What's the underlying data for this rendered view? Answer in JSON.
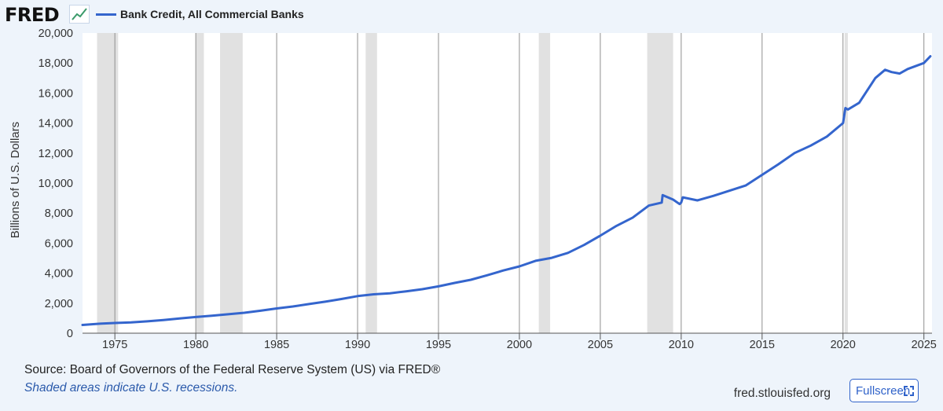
{
  "header": {
    "logo": "FRED",
    "logo_icon": "line-chart-icon",
    "legend_label": "Bank Credit, All Commercial Banks"
  },
  "footer": {
    "source": "Source: Board of Governors of the Federal Reserve System (US) via FRED®",
    "note": "Shaded areas indicate U.S. recessions.",
    "site": "fred.stlouisfed.org",
    "fullscreen_label": "Fullscreen",
    "fullscreen_icon": "expand-icon"
  },
  "colors": {
    "line": "#3465cd",
    "recession": "#e1e1e1",
    "page_bg": "#eef4fb",
    "plot_bg": "#ffffff"
  },
  "chart_data": {
    "type": "line",
    "title": "",
    "xlabel": "",
    "ylabel": "Billions of U.S. Dollars",
    "xlim": [
      1973.0,
      2025.5
    ],
    "ylim": [
      0,
      20000
    ],
    "x_ticks": [
      1975,
      1980,
      1985,
      1990,
      1995,
      2000,
      2005,
      2010,
      2015,
      2020,
      2025
    ],
    "y_ticks": [
      0,
      2000,
      4000,
      6000,
      8000,
      10000,
      12000,
      14000,
      16000,
      18000,
      20000
    ],
    "y_tick_labels": [
      "0",
      "2,000",
      "4,000",
      "6,000",
      "8,000",
      "10,000",
      "12,000",
      "14,000",
      "16,000",
      "18,000",
      "20,000"
    ],
    "grid": "vertical",
    "recessions": [
      [
        1973.9,
        1975.2
      ],
      [
        1980.0,
        1980.5
      ],
      [
        1981.5,
        1982.9
      ],
      [
        1990.5,
        1991.2
      ],
      [
        2001.2,
        2001.9
      ],
      [
        2007.9,
        2009.5
      ],
      [
        2020.1,
        2020.3
      ]
    ],
    "series": [
      {
        "x": [
          1973.0,
          1974.0,
          1975.0,
          1976.0,
          1977.0,
          1978.0,
          1979.0,
          1980.0,
          1981.0,
          1982.0,
          1983.0,
          1984.0,
          1985.0,
          1986.0,
          1987.0,
          1988.0,
          1989.0,
          1990.0,
          1991.0,
          1992.0,
          1993.0,
          1994.0,
          1995.0,
          1996.0,
          1997.0,
          1998.0,
          1999.0,
          2000.0,
          2001.0,
          2002.0,
          2003.0,
          2004.0,
          2005.0,
          2006.0,
          2007.0,
          2008.0,
          2008.8,
          2008.85,
          2009.5,
          2009.9,
          2010.0,
          2010.1,
          2011.0,
          2012.0,
          2013.0,
          2014.0,
          2015.0,
          2016.0,
          2017.0,
          2018.0,
          2019.0,
          2020.0,
          2020.15,
          2020.3,
          2021.0,
          2022.0,
          2022.6,
          2023.0,
          2023.5,
          2024.0,
          2025.0,
          2025.4
        ],
        "y": [
          550,
          630,
          680,
          720,
          790,
          880,
          980,
          1080,
          1160,
          1260,
          1360,
          1500,
          1650,
          1780,
          1940,
          2100,
          2280,
          2470,
          2590,
          2660,
          2790,
          2930,
          3120,
          3350,
          3560,
          3860,
          4180,
          4450,
          4820,
          5020,
          5350,
          5880,
          6500,
          7150,
          7700,
          8500,
          8700,
          9200,
          8900,
          8600,
          8700,
          9050,
          8850,
          9150,
          9500,
          9850,
          10550,
          11250,
          12000,
          12500,
          13100,
          14000,
          15000,
          14900,
          15350,
          17000,
          17550,
          17400,
          17300,
          17600,
          18000,
          18450
        ]
      }
    ]
  }
}
